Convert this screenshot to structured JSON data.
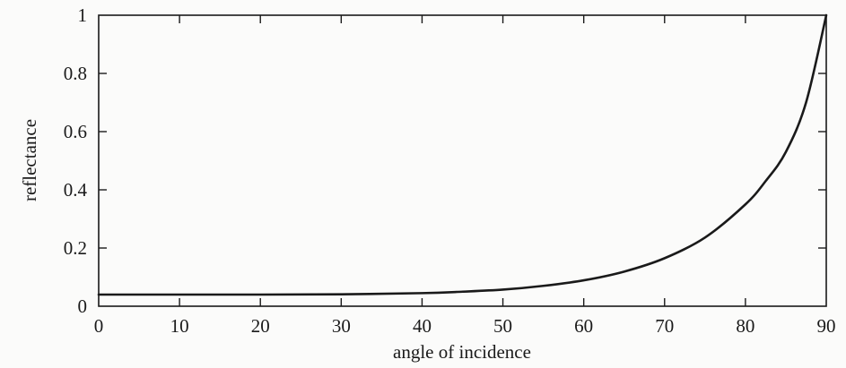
{
  "chart_data": {
    "type": "line",
    "title": "",
    "xlabel": "angle of incidence",
    "ylabel": "reflectance",
    "xlim": [
      0,
      90
    ],
    "ylim": [
      0,
      1
    ],
    "xticks": [
      0,
      10,
      20,
      30,
      40,
      50,
      60,
      70,
      80,
      90
    ],
    "yticks": [
      0,
      0.2,
      0.4,
      0.6,
      0.8,
      1
    ],
    "xtick_labels": [
      "0",
      "10",
      "20",
      "30",
      "40",
      "50",
      "60",
      "70",
      "80",
      "90"
    ],
    "ytick_labels": [
      "0",
      "0.2",
      "0.4",
      "0.6",
      "0.8",
      "1"
    ],
    "grid": false,
    "legend": false,
    "series": [
      {
        "name": "reflectance",
        "x": [
          0,
          10,
          20,
          30,
          40,
          45,
          50,
          55,
          60,
          65,
          70,
          75,
          80,
          82.5,
          85,
          87.5,
          90
        ],
        "y": [
          0.04,
          0.04,
          0.04,
          0.041,
          0.045,
          0.05,
          0.057,
          0.07,
          0.089,
          0.119,
          0.165,
          0.236,
          0.35,
          0.43,
          0.53,
          0.7,
          1.0
        ]
      }
    ]
  }
}
